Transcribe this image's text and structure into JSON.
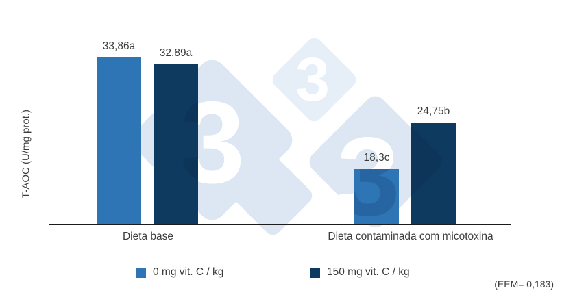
{
  "chart_data": {
    "type": "bar",
    "title": "",
    "ylabel": "T-AOC (U/mg prot.)",
    "xlabel": "",
    "categories": [
      "Dieta base",
      "Dieta contaminada com micotoxina"
    ],
    "series": [
      {
        "name": "0 mg vit. C / kg",
        "color": "#2E75B6",
        "values": [
          33.86,
          18.3
        ],
        "value_labels": [
          "33,86a",
          "18,3c"
        ]
      },
      {
        "name": "150 mg vit. C / kg",
        "color": "#0E3A5F",
        "values": [
          32.89,
          24.75
        ],
        "value_labels": [
          "32,89a",
          "24,75b"
        ]
      }
    ],
    "note": "(EEM= 0,183)",
    "ylim": [
      10.6,
      35
    ],
    "grid": false,
    "legend_position": "bottom",
    "watermark": {
      "glyph": "3",
      "diamond_color": "#dde7f3",
      "diamond_color_light": "#e6eef8",
      "glyph_color": "#ffffff"
    }
  }
}
